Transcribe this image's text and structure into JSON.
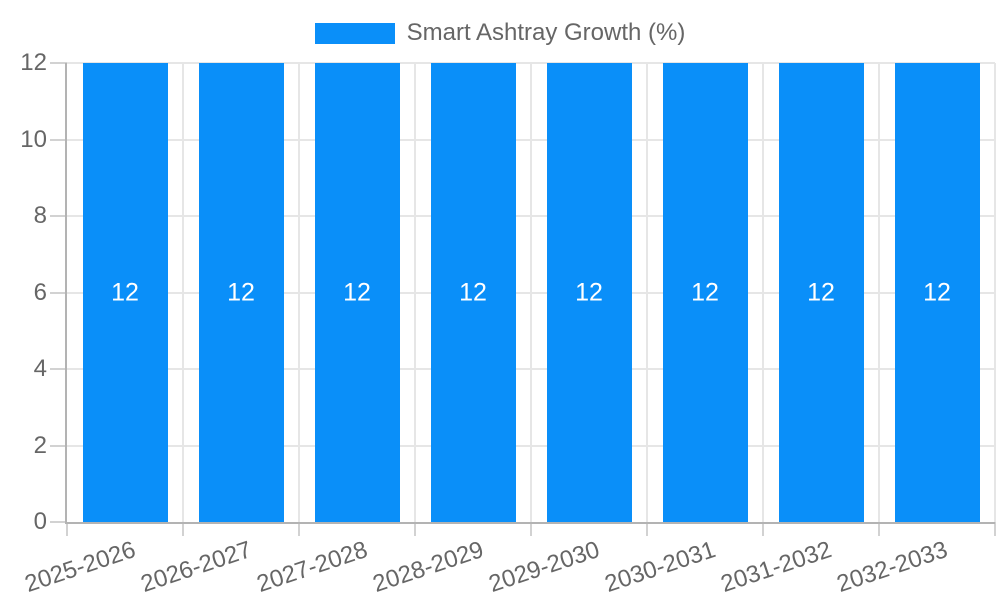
{
  "chart_data": {
    "type": "bar",
    "title": "",
    "categories": [
      "2025-2026",
      "2026-2027",
      "2027-2028",
      "2028-2029",
      "2029-2030",
      "2030-2031",
      "2031-2032",
      "2032-2033"
    ],
    "series": [
      {
        "name": "Smart Ashtray Growth (%)",
        "values": [
          12,
          12,
          12,
          12,
          12,
          12,
          12,
          12
        ],
        "value_labels": [
          "12",
          "12",
          "12",
          "12",
          "12",
          "12",
          "12",
          "12"
        ]
      }
    ],
    "xlabel": "",
    "ylabel": "",
    "ylim": [
      0,
      12
    ],
    "yticks": [
      0,
      2,
      4,
      6,
      8,
      10,
      12
    ],
    "grid": true,
    "legend_position": "top",
    "colors": {
      "bar": "#0a8ff9",
      "value_label": "#ffffff",
      "tick_text": "#666666",
      "gridline": "#e6e6e6",
      "tick_mark": "#d2d2d2",
      "axis_border": "#b3b3b3",
      "background": "#ffffff"
    }
  }
}
